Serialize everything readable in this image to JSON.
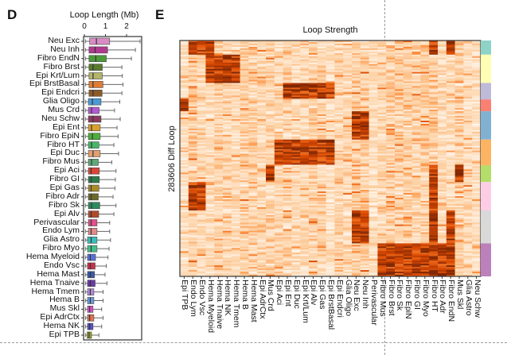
{
  "panels": {
    "left_letter": "D",
    "right_letter": "E"
  },
  "chart_data": [
    {
      "type": "box",
      "title": "Loop Length (Mb)",
      "orientation": "horizontal",
      "xticks": [
        "0",
        "1",
        "2"
      ],
      "xlim": [
        0,
        2.8
      ],
      "categories": [
        "Neu Exc",
        "Neu Inh",
        "Fibro EndN",
        "Fibro Brst",
        "Epi Krt/Lum",
        "Epi BrstBasal",
        "Epi Endcri",
        "Glia Oligo",
        "Mus Crd",
        "Neu Schw",
        "Epi Ent",
        "Fibro EpiN",
        "Fibro HT",
        "Epi Duc",
        "Fibro Mus",
        "Epi Aci",
        "Fibro GI",
        "Epi Gas",
        "Fibro Adr",
        "Fibro Sk",
        "Epi Alv",
        "Perivascular",
        "Endo Lym",
        "Glia Astro",
        "Fibro Myo",
        "Hema Myeloid",
        "Endo Vsc",
        "Hema Mast",
        "Hema Tnaive",
        "Hema Tmem",
        "Hema B",
        "Mus Skl",
        "Epi AdrCtx",
        "Hema NK",
        "Epi TPB"
      ],
      "boxes": [
        {
          "q1": 0.25,
          "median": 0.57,
          "q3": 1.2,
          "whisker_low": 0.05,
          "whisker_high": 2.64,
          "color": "#d98cc4"
        },
        {
          "q1": 0.22,
          "median": 0.51,
          "q3": 1.1,
          "whisker_low": 0.05,
          "whisker_high": 2.42,
          "color": "#b03a8f"
        },
        {
          "q1": 0.22,
          "median": 0.54,
          "q3": 1.04,
          "whisker_low": 0.05,
          "whisker_high": 2.23,
          "color": "#4d9a3a"
        },
        {
          "q1": 0.22,
          "median": 0.41,
          "q3": 0.85,
          "whisker_low": 0.05,
          "whisker_high": 1.78,
          "color": "#5a7a2e"
        },
        {
          "q1": 0.22,
          "median": 0.41,
          "q3": 0.85,
          "whisker_low": 0.05,
          "whisker_high": 1.8,
          "color": "#b2b56a"
        },
        {
          "q1": 0.22,
          "median": 0.41,
          "q3": 0.88,
          "whisker_low": 0.05,
          "whisker_high": 1.83,
          "color": "#e07b35"
        },
        {
          "q1": 0.22,
          "median": 0.41,
          "q3": 0.84,
          "whisker_low": 0.05,
          "whisker_high": 1.78,
          "color": "#8c5a2a"
        },
        {
          "q1": 0.19,
          "median": 0.38,
          "q3": 0.79,
          "whisker_low": 0.05,
          "whisker_high": 1.68,
          "color": "#4a9ad4"
        },
        {
          "q1": 0.19,
          "median": 0.34,
          "q3": 0.7,
          "whisker_low": 0.05,
          "whisker_high": 1.43,
          "color": "#b05ad0"
        },
        {
          "q1": 0.19,
          "median": 0.41,
          "q3": 0.79,
          "whisker_low": 0.05,
          "whisker_high": 1.7,
          "color": "#8a3a5e"
        },
        {
          "q1": 0.19,
          "median": 0.34,
          "q3": 0.75,
          "whisker_low": 0.05,
          "whisker_high": 1.55,
          "color": "#d9a030"
        },
        {
          "q1": 0.19,
          "median": 0.38,
          "q3": 0.75,
          "whisker_low": 0.05,
          "whisker_high": 1.6,
          "color": "#4cae3c"
        },
        {
          "q1": 0.19,
          "median": 0.34,
          "q3": 0.69,
          "whisker_low": 0.05,
          "whisker_high": 1.4,
          "color": "#45b86a"
        },
        {
          "q1": 0.19,
          "median": 0.41,
          "q3": 0.75,
          "whisker_low": 0.05,
          "whisker_high": 1.62,
          "color": "#e0a070"
        },
        {
          "q1": 0.19,
          "median": 0.34,
          "q3": 0.66,
          "whisker_low": 0.05,
          "whisker_high": 1.3,
          "color": "#5fa878"
        },
        {
          "q1": 0.19,
          "median": 0.32,
          "q3": 0.71,
          "whisker_low": 0.05,
          "whisker_high": 1.5,
          "color": "#d9453a"
        },
        {
          "q1": 0.19,
          "median": 0.32,
          "q3": 0.71,
          "whisker_low": 0.05,
          "whisker_high": 1.47,
          "color": "#2e7a4a"
        },
        {
          "q1": 0.19,
          "median": 0.32,
          "q3": 0.69,
          "whisker_low": 0.05,
          "whisker_high": 1.45,
          "color": "#a88a2a"
        },
        {
          "q1": 0.19,
          "median": 0.32,
          "q3": 0.66,
          "whisker_low": 0.05,
          "whisker_high": 1.36,
          "color": "#6a6a2a"
        },
        {
          "q1": 0.19,
          "median": 0.34,
          "q3": 0.73,
          "whisker_low": 0.05,
          "whisker_high": 1.5,
          "color": "#2e8a5e"
        },
        {
          "q1": 0.19,
          "median": 0.32,
          "q3": 0.68,
          "whisker_low": 0.05,
          "whisker_high": 1.4,
          "color": "#b04a2a"
        },
        {
          "q1": 0.19,
          "median": 0.32,
          "q3": 0.6,
          "whisker_low": 0.05,
          "whisker_high": 1.2,
          "color": "#e0508a"
        },
        {
          "q1": 0.19,
          "median": 0.32,
          "q3": 0.6,
          "whisker_low": 0.05,
          "whisker_high": 1.2,
          "color": "#e08a8a"
        },
        {
          "q1": 0.15,
          "median": 0.32,
          "q3": 0.6,
          "whisker_low": 0.05,
          "whisker_high": 1.24,
          "color": "#3abcb8"
        },
        {
          "q1": 0.15,
          "median": 0.32,
          "q3": 0.6,
          "whisker_low": 0.05,
          "whisker_high": 1.17,
          "color": "#45c08a"
        },
        {
          "q1": 0.15,
          "median": 0.28,
          "q3": 0.53,
          "whisker_low": 0.05,
          "whisker_high": 1.12,
          "color": "#5a70d8"
        },
        {
          "q1": 0.15,
          "median": 0.28,
          "q3": 0.51,
          "whisker_low": 0.05,
          "whisker_high": 1.04,
          "color": "#c8304a"
        },
        {
          "q1": 0.15,
          "median": 0.28,
          "q3": 0.48,
          "whisker_low": 0.05,
          "whisker_high": 0.98,
          "color": "#3a5aa8"
        },
        {
          "q1": 0.15,
          "median": 0.28,
          "q3": 0.51,
          "whisker_low": 0.05,
          "whisker_high": 1.07,
          "color": "#6a3aa8"
        },
        {
          "q1": 0.15,
          "median": 0.28,
          "q3": 0.45,
          "whisker_low": 0.05,
          "whisker_high": 0.89,
          "color": "#b08ad8"
        },
        {
          "q1": 0.15,
          "median": 0.28,
          "q3": 0.45,
          "whisker_low": 0.05,
          "whisker_high": 0.89,
          "color": "#6a9ad8"
        },
        {
          "q1": 0.15,
          "median": 0.25,
          "q3": 0.41,
          "whisker_low": 0.05,
          "whisker_high": 0.82,
          "color": "#d850c8"
        },
        {
          "q1": 0.15,
          "median": 0.25,
          "q3": 0.45,
          "whisker_low": 0.05,
          "whisker_high": 0.89,
          "color": "#e07050"
        },
        {
          "q1": 0.15,
          "median": 0.25,
          "q3": 0.41,
          "whisker_low": 0.05,
          "whisker_high": 0.82,
          "color": "#5a50c8"
        },
        {
          "q1": 0.13,
          "median": 0.22,
          "q3": 0.34,
          "whisker_low": 0.05,
          "whisker_high": 0.69,
          "color": "#9aa030"
        }
      ]
    },
    {
      "type": "heatmap",
      "title": "Loop Strength",
      "ylabel": "283606 Diff Loop",
      "colormap": [
        "#fff5eb",
        "#fdd0a2",
        "#fd8d3c",
        "#d94801",
        "#7f2704"
      ],
      "columns": [
        "Epi TPB",
        "Endo Lym",
        "Endo Vsc",
        "Hema Myeloid",
        "Hema Tnaive",
        "Hema NK",
        "Hema Tmem",
        "Hema B",
        "Hema Mast",
        "Epi AdrCtx",
        "Mus Crd",
        "Epi Aci",
        "Epi Ent",
        "Epi Duc",
        "Epi Krt/Lum",
        "Epi Alv",
        "Epi Gas",
        "Epi BrstBasal",
        "Epi Endcri",
        "Glia Oligo",
        "Neu Exc",
        "Neu Inh",
        "Perivascular",
        "Fibro Mus",
        "Fibro Brst",
        "Fibro Sk",
        "Fibro EpiN",
        "Fibro GI",
        "Fibro Myo",
        "Fibro HT",
        "Fibro Adr",
        "Fibro EndN",
        "Mus Skl",
        "Glia Astro",
        "Neu Schw"
      ],
      "row_clusters": [
        {
          "color": "#8dd3c7",
          "share": 0.06,
          "enriched": [
            "Endo Lym",
            "Endo Vsc",
            "Hema Myeloid",
            "Fibro HT",
            "Fibro EndN"
          ]
        },
        {
          "color": "#ffffb3",
          "share": 0.12,
          "enriched": [
            "Hema Myeloid",
            "Hema Tnaive",
            "Hema NK",
            "Hema Tmem"
          ]
        },
        {
          "color": "#bebada",
          "share": 0.07,
          "enriched": [
            "Epi Ent",
            "Epi Duc",
            "Epi Krt/Lum",
            "Epi Alv",
            "Epi Gas",
            "Epi BrstBasal"
          ]
        },
        {
          "color": "#fb8072",
          "share": 0.05,
          "enriched": [
            "Epi TPB"
          ]
        },
        {
          "color": "#80b1d3",
          "share": 0.12,
          "enriched": [
            "Neu Exc",
            "Neu Inh"
          ]
        },
        {
          "color": "#fdb462",
          "share": 0.11,
          "enriched": [
            "Epi Aci",
            "Epi Ent",
            "Epi Duc",
            "Epi Krt/Lum",
            "Epi Alv",
            "Epi Gas",
            "Epi BrstBasal"
          ]
        },
        {
          "color": "#b3de69",
          "share": 0.07,
          "enriched": [
            "Mus Crd",
            "Mus Skl",
            "Fibro HT"
          ]
        },
        {
          "color": "#fccde5",
          "share": 0.12,
          "enriched": [
            "Endo Lym",
            "Endo Vsc",
            "Fibro HT"
          ]
        },
        {
          "color": "#d9d9d9",
          "share": 0.14,
          "enriched": [
            "Neu Exc",
            "Neu Inh",
            "Fibro HT",
            "Fibro EndN"
          ]
        },
        {
          "color": "#bc80bd",
          "share": 0.14,
          "enriched": [
            "Fibro Mus",
            "Fibro Brst",
            "Fibro Sk",
            "Fibro EpiN",
            "Fibro GI",
            "Fibro Myo",
            "Fibro HT",
            "Fibro Adr",
            "Fibro EndN"
          ]
        }
      ]
    }
  ]
}
